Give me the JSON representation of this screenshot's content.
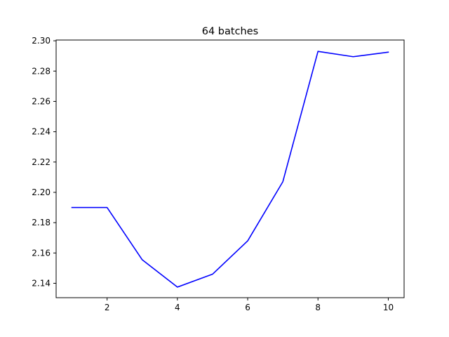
{
  "chart_data": {
    "type": "line",
    "title": "64 batches",
    "xlabel": "",
    "ylabel": "",
    "x": [
      1,
      2,
      3,
      4,
      5,
      6,
      7,
      8,
      9,
      10
    ],
    "series": [
      {
        "values": [
          2.19,
          2.19,
          2.1555,
          2.1375,
          2.146,
          2.168,
          2.207,
          2.293,
          2.2895,
          2.2925
        ],
        "color": "#0000ff"
      }
    ],
    "xlim": [
      0.55,
      10.45
    ],
    "ylim": [
      2.1305,
      2.3005
    ],
    "xticks": [
      2,
      4,
      6,
      8,
      10
    ],
    "xtick_labels": [
      "2",
      "4",
      "6",
      "8",
      "10"
    ],
    "yticks": [
      2.14,
      2.16,
      2.18,
      2.2,
      2.22,
      2.24,
      2.26,
      2.28,
      2.3
    ],
    "ytick_labels": [
      "2.14",
      "2.16",
      "2.18",
      "2.20",
      "2.22",
      "2.24",
      "2.26",
      "2.28",
      "2.30"
    ],
    "grid": false,
    "legend": "none"
  }
}
